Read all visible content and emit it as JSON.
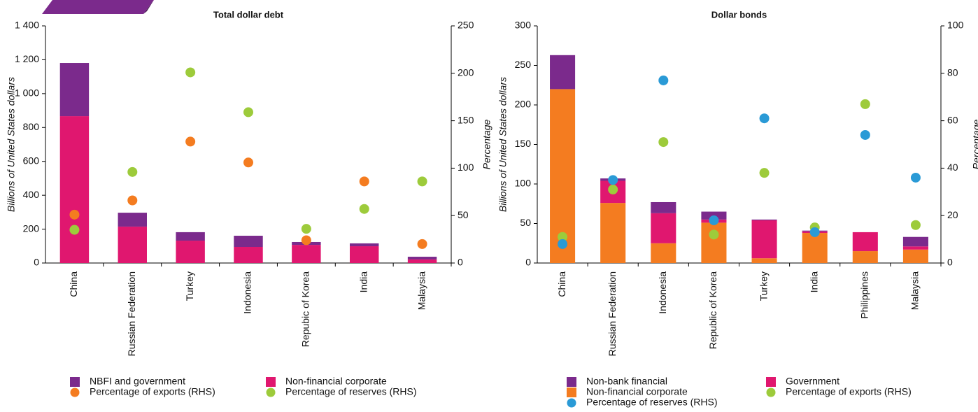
{
  "chart_data": [
    {
      "type": "bar",
      "title": "Total dollar debt",
      "y_label": "Billions of United States dollars",
      "y2_label": "Percentage",
      "categories": [
        "China",
        "Russian Federation",
        "Turkey",
        "Indonesia",
        "Repubic of Korea",
        "India",
        "Malaysia"
      ],
      "series": [
        {
          "name": "NBFI and government",
          "color": "#7b2a8c",
          "values": [
            314,
            82,
            50,
            66,
            17,
            17,
            16
          ]
        },
        {
          "name": "Non-financial corporate",
          "color": "#e0176f",
          "values": [
            867,
            215,
            132,
            95,
            107,
            99,
            21
          ]
        },
        {
          "name": "Percentage of exports (RHS)",
          "color": "#f47c20",
          "axis": "y2",
          "values": [
            51,
            66,
            128,
            106,
            24,
            86,
            20
          ]
        },
        {
          "name": "Percentage of reserves (RHS)",
          "color": "#9dcb3b",
          "axis": "y2",
          "values": [
            35,
            96,
            201,
            159,
            36,
            57,
            86
          ]
        }
      ],
      "ylim": [
        0,
        1400
      ],
      "yticks": [
        0,
        200,
        400,
        600,
        800,
        {
          "value": 1000,
          "label": "1 000"
        },
        {
          "value": 1200,
          "label": "1 200"
        },
        {
          "value": 1400,
          "label": "1 400"
        }
      ],
      "y2lim": [
        0,
        250
      ],
      "y2ticks": [
        0,
        50,
        100,
        150,
        200,
        250
      ]
    },
    {
      "type": "bar",
      "title": "Dollar bonds",
      "y_label": "Billions of United States dollars",
      "y2_label": "Percentage",
      "categories": [
        "China",
        "Russian Federation",
        "Indonesia",
        "Republic of Korea",
        "Turkey",
        "India",
        "Philippines",
        "Malaysia"
      ],
      "series": [
        {
          "name": "Non-bank financial",
          "color": "#7b2a8c",
          "values": [
            43,
            3,
            14,
            10,
            1,
            1,
            0,
            12
          ]
        },
        {
          "name": "Government",
          "color": "#e0176f",
          "values": [
            0,
            28,
            38,
            4,
            48,
            2,
            24,
            4
          ]
        },
        {
          "name": "Non-financial corporate",
          "color": "#f47c20",
          "values": [
            220,
            76,
            25,
            51,
            6,
            38,
            15,
            17
          ]
        },
        {
          "name": "Percentage of exports (RHS)",
          "color": "#9dcb3b",
          "axis": "y2",
          "values": [
            11,
            31,
            51,
            12,
            38,
            15,
            67,
            16
          ]
        },
        {
          "name": "Percentage of reserves (RHS)",
          "color": "#2a9ad6",
          "axis": "y2",
          "values": [
            8,
            35,
            77,
            18,
            61,
            13,
            54,
            36
          ]
        }
      ],
      "ylim": [
        0,
        300
      ],
      "yticks": [
        0,
        50,
        100,
        150,
        200,
        250,
        300
      ],
      "y2lim": [
        0,
        100
      ],
      "y2ticks": [
        0,
        20,
        40,
        60,
        80,
        100
      ]
    }
  ]
}
